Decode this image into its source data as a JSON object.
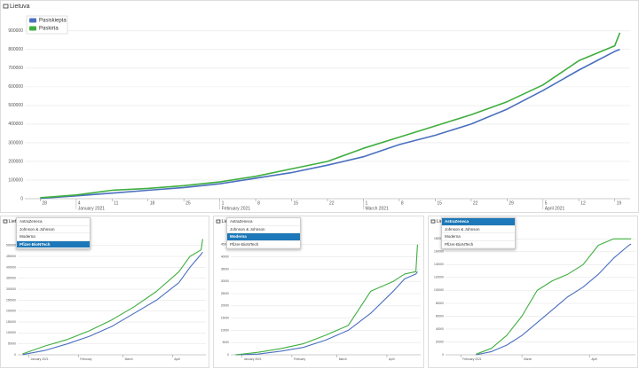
{
  "chart_data": [
    {
      "type": "line",
      "title": "Lietuva",
      "x": [
        "2020-12-28",
        "2021-01-04",
        "2021-01-11",
        "2021-01-18",
        "2021-01-25",
        "2021-02-01",
        "2021-02-08",
        "2021-02-15",
        "2021-02-22",
        "2021-03-01",
        "2021-03-08",
        "2021-03-15",
        "2021-03-22",
        "2021-03-29",
        "2021-04-05",
        "2021-04-12",
        "2021-04-19",
        "2021-04-20"
      ],
      "series": [
        {
          "name": "Pasiskiepta",
          "color": "#4a6fbf",
          "values": [
            2000,
            15000,
            30000,
            45000,
            60000,
            80000,
            110000,
            140000,
            180000,
            225000,
            290000,
            340000,
            400000,
            480000,
            580000,
            690000,
            790000,
            800000
          ]
        },
        {
          "name": "Paskirta",
          "color": "#3fae3f",
          "values": [
            5000,
            20000,
            45000,
            55000,
            70000,
            90000,
            120000,
            160000,
            200000,
            270000,
            330000,
            390000,
            450000,
            520000,
            610000,
            740000,
            820000,
            890000
          ]
        }
      ],
      "xlim": [
        "2020-12-25",
        "2021-04-22"
      ],
      "xticks": [
        {
          "value": "2020-12-28",
          "label": "28"
        },
        {
          "value": "2021-01-04",
          "label": "4"
        },
        {
          "value": "2021-01-11",
          "label": "11"
        },
        {
          "value": "2021-01-18",
          "label": "18"
        },
        {
          "value": "2021-01-25",
          "label": "25"
        },
        {
          "value": "2021-02-01",
          "label": "1"
        },
        {
          "value": "2021-02-08",
          "label": "8"
        },
        {
          "value": "2021-02-15",
          "label": "15"
        },
        {
          "value": "2021-02-22",
          "label": "22"
        },
        {
          "value": "2021-03-01",
          "label": "1"
        },
        {
          "value": "2021-03-08",
          "label": "8"
        },
        {
          "value": "2021-03-15",
          "label": "15"
        },
        {
          "value": "2021-03-22",
          "label": "22"
        },
        {
          "value": "2021-03-29",
          "label": "29"
        },
        {
          "value": "2021-04-05",
          "label": "5"
        },
        {
          "value": "2021-04-12",
          "label": "12"
        },
        {
          "value": "2021-04-19",
          "label": "19"
        }
      ],
      "month_ticks": [
        {
          "value": "2021-01-04",
          "label": "January 2021"
        },
        {
          "value": "2021-02-01",
          "label": "February 2021"
        },
        {
          "value": "2021-03-01",
          "label": "March 2021"
        },
        {
          "value": "2021-04-05",
          "label": "April 2021"
        }
      ],
      "ylim": [
        0,
        980000
      ],
      "yticks": [
        0,
        100000,
        200000,
        300000,
        400000,
        500000,
        600000,
        700000,
        800000,
        900000
      ],
      "grid": true,
      "legend": "top-left"
    },
    {
      "type": "line",
      "title": "Lietuva",
      "x": [
        "2020-12-28",
        "2021-01-11",
        "2021-01-25",
        "2021-02-08",
        "2021-02-22",
        "2021-03-08",
        "2021-03-22",
        "2021-04-05",
        "2021-04-12",
        "2021-04-19",
        "2021-04-20"
      ],
      "series": [
        {
          "color": "#4a6fbf",
          "values": [
            1000,
            20000,
            50000,
            85000,
            130000,
            190000,
            250000,
            330000,
            400000,
            460000,
            470000
          ]
        },
        {
          "color": "#3fae3f",
          "values": [
            4000,
            40000,
            70000,
            110000,
            160000,
            220000,
            290000,
            380000,
            450000,
            480000,
            530000
          ]
        }
      ],
      "xlim": [
        "2020-12-25",
        "2021-04-22"
      ],
      "xticks": [
        {
          "value": "2021-01-01",
          "label": "January 2021"
        },
        {
          "value": "2021-02-01",
          "label": "February"
        },
        {
          "value": "2021-03-01",
          "label": "March"
        },
        {
          "value": "2021-04-01",
          "label": "April"
        }
      ],
      "ylim": [
        0,
        560000
      ],
      "yticks": [
        0,
        50000,
        100000,
        150000,
        200000,
        250000,
        300000,
        350000,
        400000,
        450000,
        500000
      ],
      "grid": true
    },
    {
      "type": "line",
      "title": "Lietuva",
      "x": [
        "2020-12-28",
        "2021-01-11",
        "2021-01-25",
        "2021-02-08",
        "2021-02-22",
        "2021-03-08",
        "2021-03-22",
        "2021-04-05",
        "2021-04-12",
        "2021-04-19",
        "2021-04-20"
      ],
      "series": [
        {
          "color": "#4a6fbf",
          "values": [
            0,
            300,
            1500,
            3000,
            6000,
            10000,
            17000,
            26000,
            31000,
            33000,
            34000
          ]
        },
        {
          "color": "#3fae3f",
          "values": [
            0,
            1000,
            2500,
            4500,
            8000,
            12000,
            26000,
            30000,
            33000,
            34000,
            45000
          ]
        }
      ],
      "xlim": [
        "2020-12-25",
        "2021-04-22"
      ],
      "xticks": [
        {
          "value": "2021-01-01",
          "label": "January 2021"
        },
        {
          "value": "2021-02-01",
          "label": "February"
        },
        {
          "value": "2021-03-01",
          "label": "March"
        },
        {
          "value": "2021-04-01",
          "label": "April"
        }
      ],
      "ylim": [
        0,
        50000
      ],
      "yticks": [
        0,
        5000,
        10000,
        15000,
        20000,
        25000,
        30000,
        35000,
        40000,
        45000
      ],
      "grid": true
    },
    {
      "type": "line",
      "title": "Lietuva",
      "x": [
        "2021-02-08",
        "2021-02-15",
        "2021-02-22",
        "2021-03-01",
        "2021-03-08",
        "2021-03-15",
        "2021-03-22",
        "2021-03-29",
        "2021-04-05",
        "2021-04-12",
        "2021-04-19",
        "2021-04-20"
      ],
      "series": [
        {
          "color": "#4a6fbf",
          "values": [
            0,
            5000,
            15000,
            30000,
            50000,
            70000,
            90000,
            105000,
            125000,
            150000,
            170000,
            172000
          ]
        },
        {
          "color": "#3fae3f",
          "values": [
            1000,
            10000,
            30000,
            60000,
            100000,
            115000,
            125000,
            140000,
            170000,
            180000,
            180000,
            180000
          ]
        }
      ],
      "xlim": [
        "2021-01-25",
        "2021-04-22"
      ],
      "xticks": [
        {
          "value": "2021-02-01",
          "label": "February 2021"
        },
        {
          "value": "2021-03-01",
          "label": "March"
        },
        {
          "value": "2021-04-01",
          "label": "April"
        }
      ],
      "ylim": [
        0,
        190000
      ],
      "yticks": [
        0,
        20000,
        40000,
        60000,
        80000,
        100000,
        120000,
        140000,
        160000,
        180000
      ],
      "grid": true
    }
  ],
  "dropdowns": [
    {
      "options": [
        "AstraZeneca",
        "Johnson & Johnson",
        "Moderna",
        "Pfizer-BioNTech"
      ],
      "selected": 3
    },
    {
      "options": [
        "AstraZeneca",
        "Johnson & Johnson",
        "Moderna",
        "Pfizer-BioNTech"
      ],
      "selected": 2
    },
    {
      "options": [
        "AstraZeneca",
        "Johnson & Johnson",
        "Moderna",
        "Pfizer-BioNTech"
      ],
      "selected": 0
    }
  ]
}
